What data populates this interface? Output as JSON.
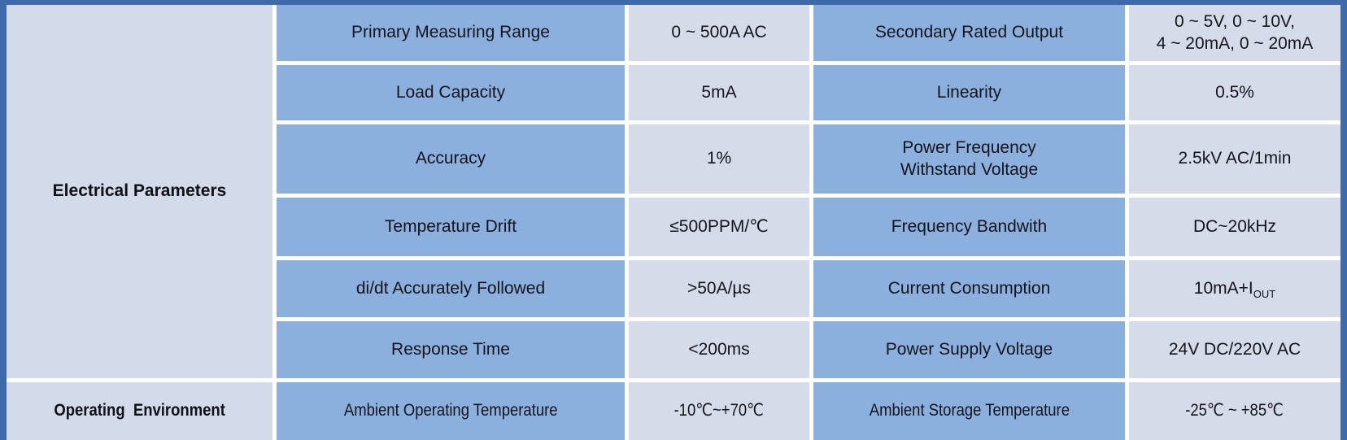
{
  "table": {
    "colors": {
      "outer_border": "#3f6aa9",
      "param_cell_bg": "#8cb0de",
      "value_cell_bg": "#d5dbe9",
      "category_cell_bg": "#d3dae9",
      "gridline": "#ffffff",
      "text": "#14141b"
    },
    "categories": [
      {
        "label": "Electrical Parameters"
      },
      {
        "label": "Operating  Environment"
      }
    ],
    "rows": [
      {
        "param1": "Primary Measuring Range",
        "value1": "0 ~ 500A AC",
        "param2": "Secondary Rated Output",
        "value2_lines": [
          "0 ~ 5V, 0 ~ 10V,",
          "4 ~ 20mA, 0 ~ 20mA"
        ]
      },
      {
        "param1": "Load Capacity",
        "value1": "5mA",
        "param2": "Linearity",
        "value2": "0.5%"
      },
      {
        "param1": "Accuracy",
        "value1": "1%",
        "param2_lines": [
          "Power Frequency",
          "Withstand Voltage"
        ],
        "value2": "2.5kV AC/1min"
      },
      {
        "param1": "Temperature Drift",
        "value1": "≤500PPM/℃",
        "param2": "Frequency Bandwith",
        "value2": "DC~20kHz"
      },
      {
        "param1": "di/dt Accurately Followed",
        "value1": ">50A/µs",
        "param2": "Current Consumption",
        "value2_main": "10mA+I",
        "value2_sub": "OUT"
      },
      {
        "param1": "Response Time",
        "value1": "<200ms",
        "param2": "Power Supply Voltage",
        "value2": "24V DC/220V AC"
      },
      {
        "param1": "Ambient Operating Temperature",
        "value1": "-10℃~+70℃",
        "param2": "Ambient Storage Temperature",
        "value2": "-25℃ ~ +85℃"
      }
    ]
  }
}
